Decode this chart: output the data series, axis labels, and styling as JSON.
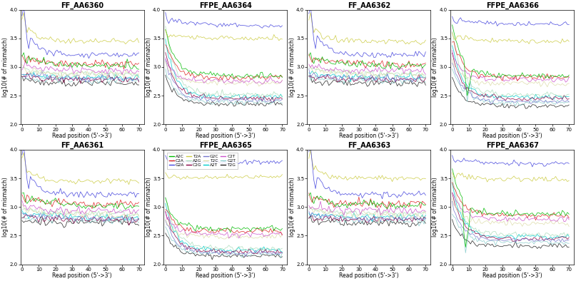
{
  "titles": [
    "FF_AA6360",
    "FFPE_AA6364",
    "FF_AA6362",
    "FFPE_AA6366",
    "FF_AA6361",
    "FFPE_AA6365",
    "FF_AA6363",
    "FFPE_AA6367"
  ],
  "xlabel": "Read position (5'->3')",
  "ylabel": "log10(# of mismatch)",
  "ylim": [
    2.0,
    4.0
  ],
  "yticks": [
    2.0,
    2.5,
    3.0,
    3.5,
    4.0
  ],
  "xticks": [
    0,
    10,
    20,
    30,
    40,
    50,
    60,
    70
  ],
  "line_colors": {
    "A2C": "#00bb00",
    "A2G": "#aaddbb",
    "A2T": "#00cccc",
    "C2A": "#dd2222",
    "C2G": "#880044",
    "C2T": "#cc55cc",
    "G2A": "#4444dd",
    "G2C": "#7777cc",
    "G2T": "#88cccc",
    "T2A": "#cccc44",
    "T2C": "#ddddaa",
    "T2G": "#222222"
  },
  "legend_order": [
    "A2C",
    "C2A",
    "G2A",
    "T2A",
    "A2G",
    "C2G",
    "G2C",
    "T2C",
    "A2T",
    "C2T",
    "G2T",
    "T2G"
  ],
  "background": "#ffffff",
  "title_fontsize": 7,
  "axis_fontsize": 5.5,
  "tick_fontsize": 5
}
